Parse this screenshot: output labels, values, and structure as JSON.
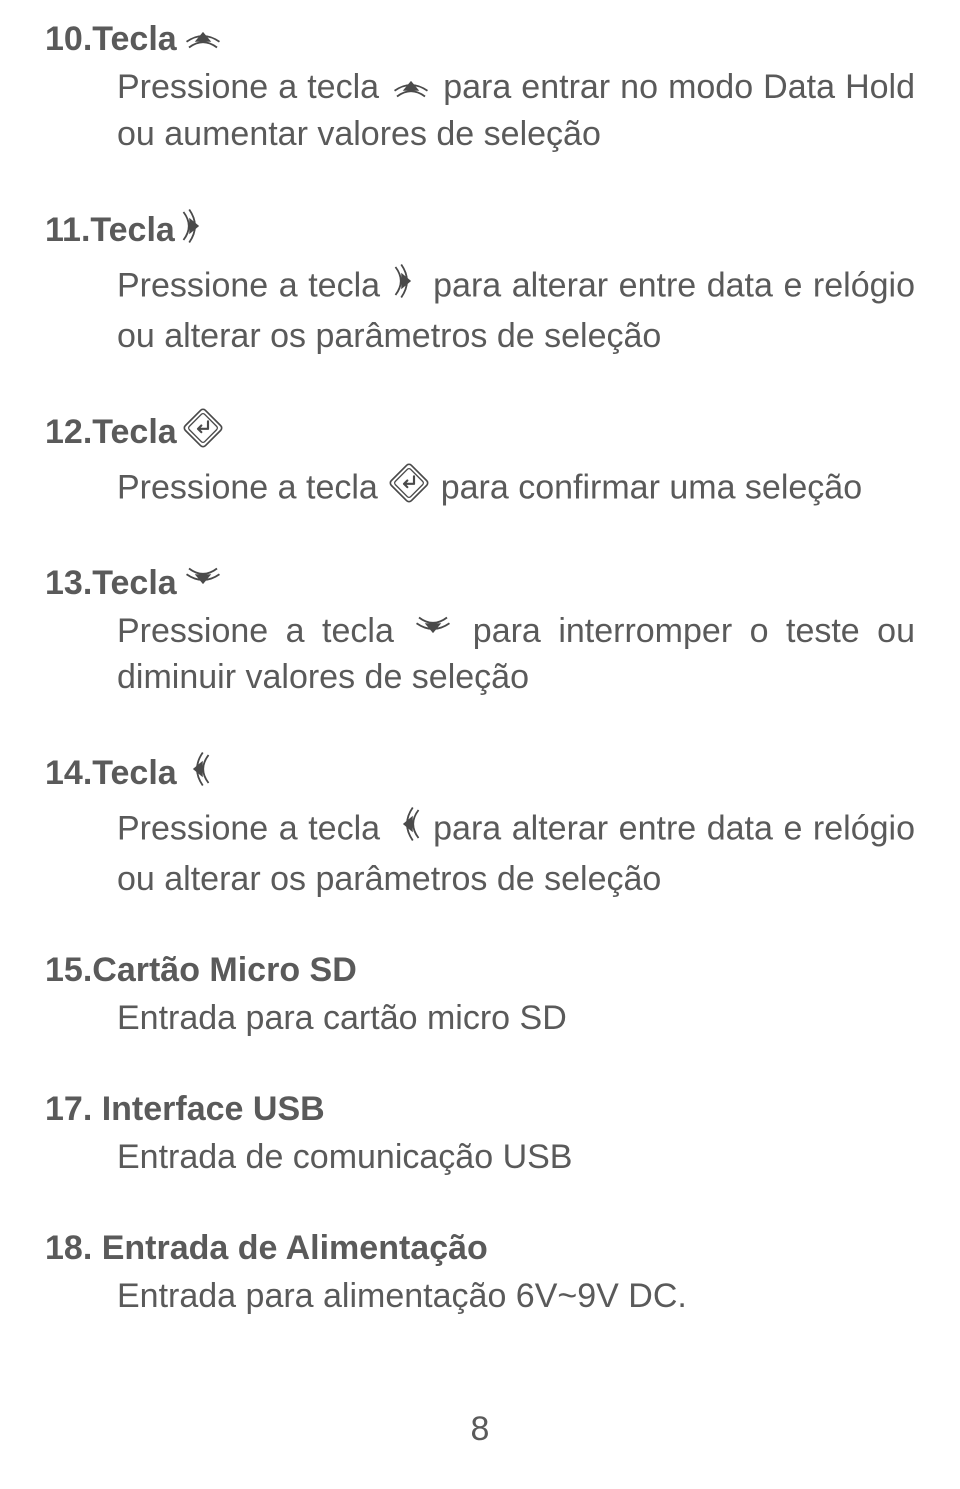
{
  "sections": [
    {
      "id": "sec10",
      "heading_prefix": "10.Tecla",
      "heading_icon": "up",
      "body_html": "Pressione a tecla {up} para entrar no modo Data Hold ou aumentar valores de seleção"
    },
    {
      "id": "sec11",
      "heading_prefix": "11.Tecla",
      "heading_icon": "right",
      "body_html": "Pressione a tecla {right} para alterar entre data e relógio ou alterar os parâmetros de seleção"
    },
    {
      "id": "sec12",
      "heading_prefix": "12.Tecla",
      "heading_icon": "enter",
      "body_html": "Pressione a tecla {enter} para confirmar uma seleção"
    },
    {
      "id": "sec13",
      "heading_prefix": "13.Tecla",
      "heading_icon": "down",
      "body_html": "Pressione a tecla {down} para interromper o teste ou diminuir valores de seleção"
    },
    {
      "id": "sec14",
      "heading_prefix": "14.Tecla",
      "heading_icon": "left",
      "body_html": "Pressione a tecla {left} para alterar entre data e relógio ou alterar os parâmetros de seleção"
    },
    {
      "id": "sec15",
      "heading_prefix": "15.Cartão Micro SD",
      "heading_icon": null,
      "body_html": "Entrada para cartão micro SD"
    },
    {
      "id": "sec17",
      "heading_prefix": "17. Interface USB",
      "heading_icon": null,
      "body_html": "Entrada de comunicação USB"
    },
    {
      "id": "sec18",
      "heading_prefix": "18. Entrada de Alimentação",
      "heading_icon": null,
      "body_html": "Entrada para alimentação 6V~9V DC."
    }
  ],
  "page_number": "8",
  "colors": {
    "text": "#5a5a5a",
    "icon_stroke": "#4a4a4a",
    "background": "#ffffff"
  },
  "font_sizes": {
    "heading": 34,
    "body": 34,
    "page_number": 34
  },
  "icon_size": {
    "heading": 40,
    "inline": 40
  }
}
